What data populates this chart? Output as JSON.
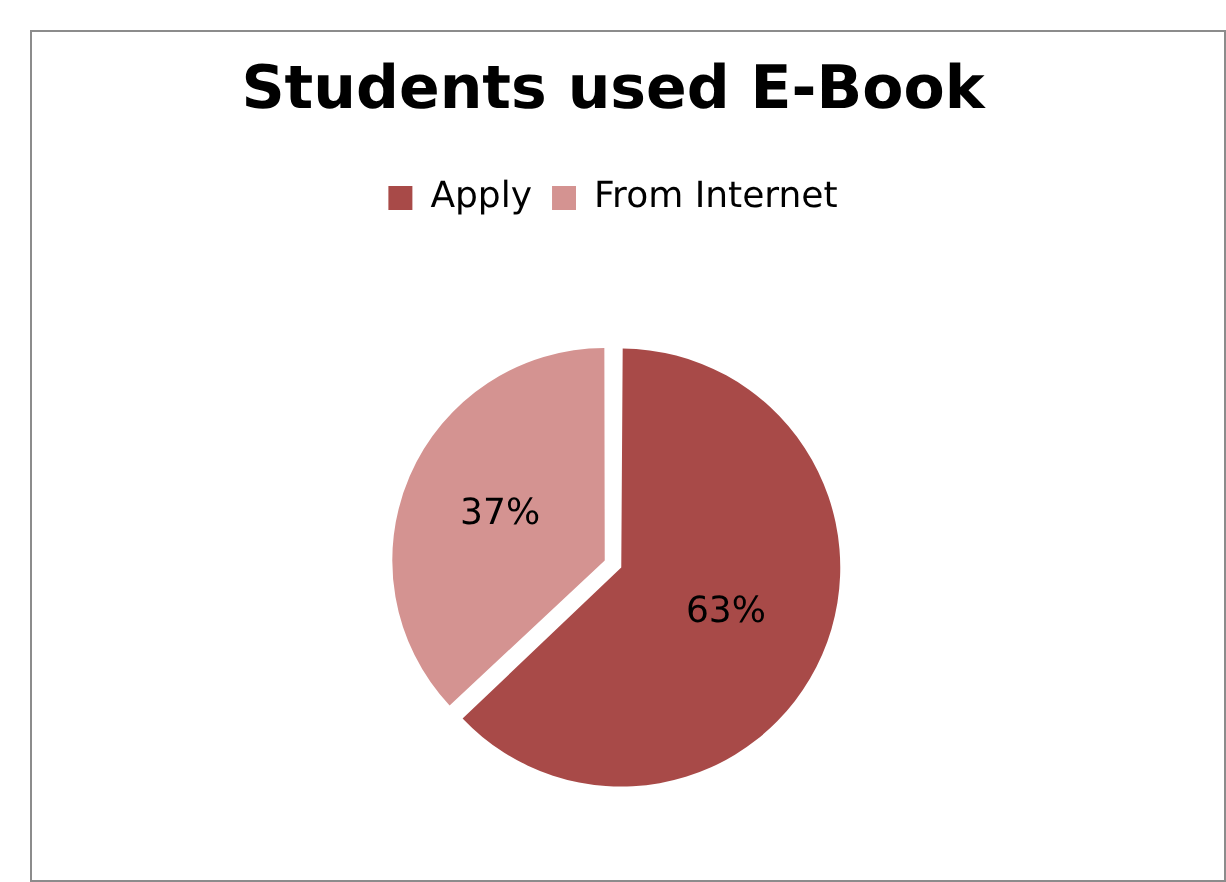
{
  "chart_data": {
    "type": "pie",
    "title": "Students used E-Book",
    "categories": [
      "Apply",
      "From Internet"
    ],
    "values": [
      63,
      37
    ],
    "colors": [
      "#a84a48",
      "#d49391"
    ],
    "value_labels": [
      "63%",
      "37%"
    ],
    "legend": "top"
  }
}
